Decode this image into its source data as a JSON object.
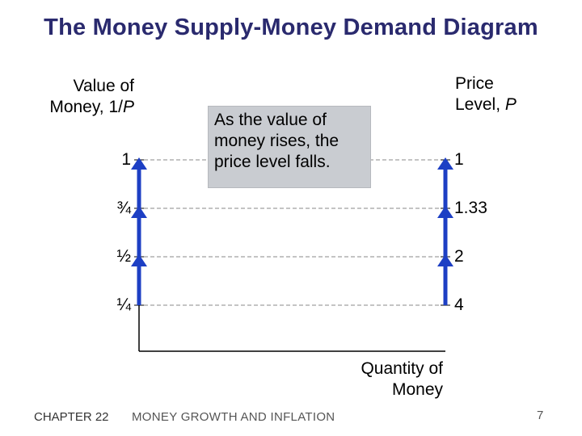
{
  "title": "The Money Supply-Money Demand Diagram",
  "left_axis_label": {
    "line1": "Value of",
    "line2_prefix": "Money, 1/",
    "line2_var": "P"
  },
  "right_axis_label": {
    "line1": "Price",
    "line2_prefix": "Level, ",
    "line2_var": "P"
  },
  "x_axis_label": {
    "line1": "Quantity of",
    "line2": "Money"
  },
  "callout": {
    "line1": "As the value of",
    "line2": "money rises, the",
    "line3": "price level falls."
  },
  "left_ticks": [
    "1",
    "¾",
    "½",
    "¼"
  ],
  "right_ticks": [
    "1",
    "1.33",
    "2",
    "4"
  ],
  "footer": {
    "chapter": "CHAPTER 22",
    "topic": "MONEY GROWTH AND INFLATION",
    "page": "7"
  },
  "colors": {
    "title": "#2a2a6e",
    "arrow": "#1d3fc4",
    "callout_bg": "#c9ccd1"
  }
}
